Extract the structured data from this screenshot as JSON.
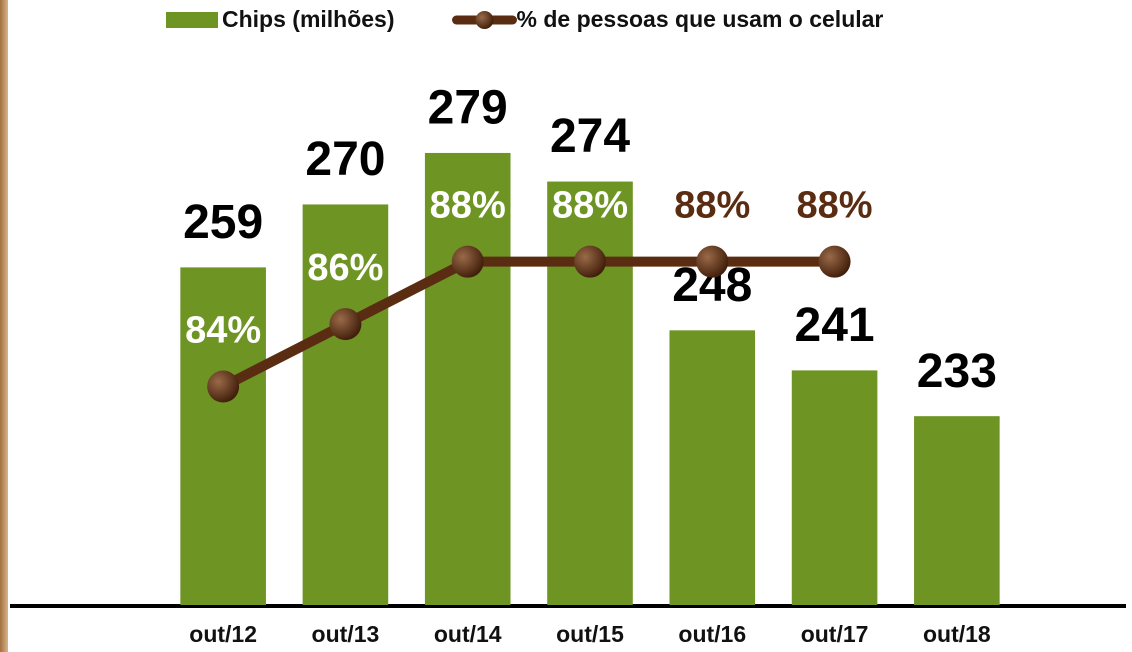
{
  "chart_data": {
    "type": "bar",
    "categories": [
      "out/12",
      "out/13",
      "out/14",
      "out/15",
      "out/16",
      "out/17",
      "out/18"
    ],
    "series": [
      {
        "name": "Chips (milhões)",
        "type": "bar",
        "color": "#6e9424",
        "values": [
          259,
          270,
          279,
          274,
          248,
          241,
          233
        ]
      },
      {
        "name": "% de pessoas que usam o celular",
        "type": "line",
        "axis": "y2",
        "color": "#5a2d12",
        "values": [
          84,
          86,
          88,
          88,
          88,
          88,
          null
        ],
        "value_labels": [
          "84%",
          "86%",
          "88%",
          "88%",
          "88%",
          "88%",
          null
        ]
      }
    ],
    "ylim": [
      200,
      290
    ],
    "y2lim": [
      77,
      93.5
    ],
    "legend": "top"
  }
}
